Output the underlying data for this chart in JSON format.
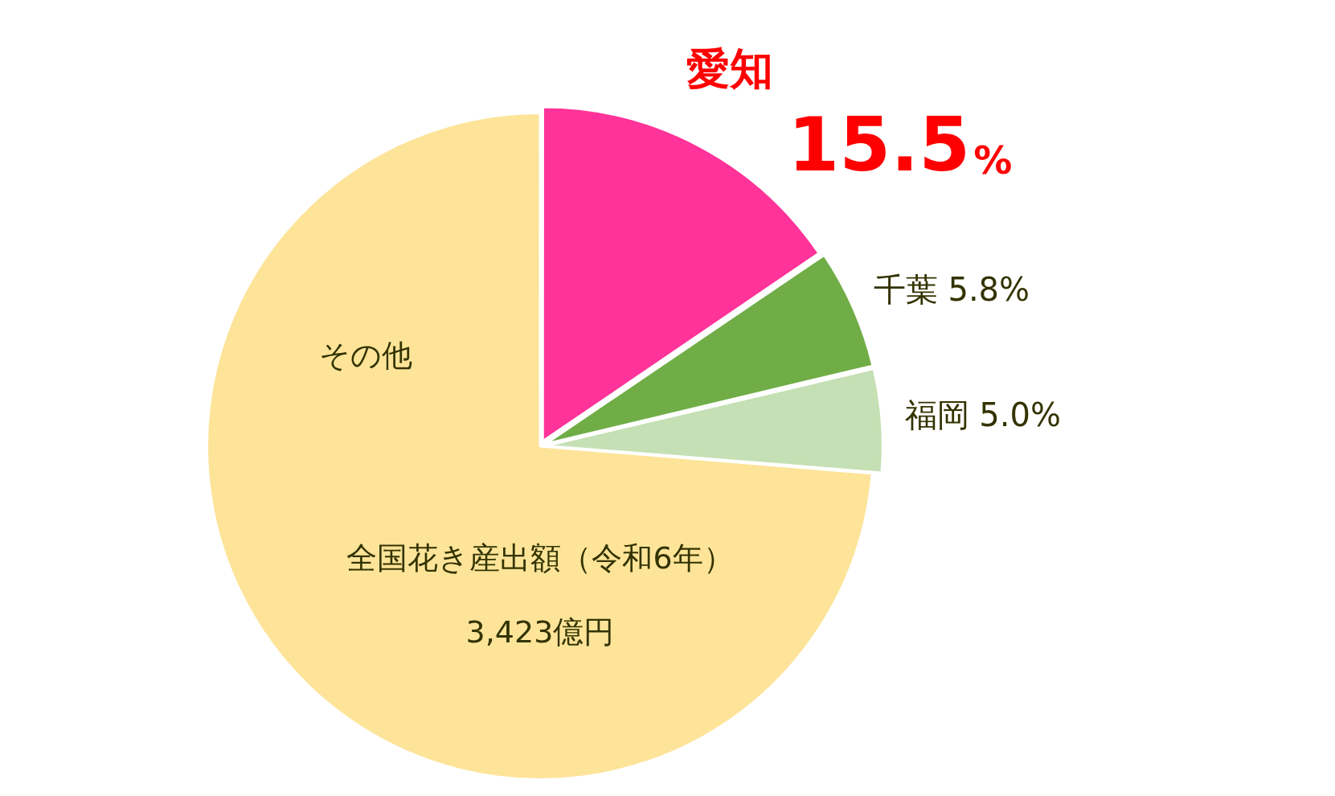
{
  "chart_data": {
    "type": "pie",
    "categories": [
      "愛知",
      "千葉",
      "福岡",
      "その他"
    ],
    "values": [
      15.5,
      5.8,
      5.0,
      73.7
    ],
    "value_labels": [
      "15.5%",
      "5.8%",
      "5.0%",
      null
    ],
    "colors": [
      "#ff3399",
      "#70ad47",
      "#c5e0b4",
      "#fde499"
    ],
    "annotations": [
      "全国花き産出額（令和6年）",
      "3,423億円"
    ]
  }
}
